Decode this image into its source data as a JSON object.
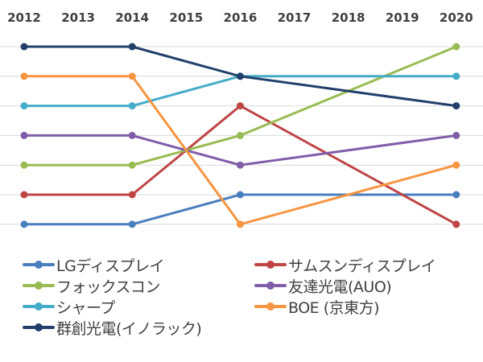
{
  "chart_data": {
    "type": "line",
    "subtype": "bump-ranking",
    "title": "",
    "xlabel": "",
    "ylabel": "",
    "x": [
      "2012",
      "2013",
      "2014",
      "2015",
      "2016",
      "2017",
      "2018",
      "2019",
      "2020"
    ],
    "x_axis_position": "top",
    "y_axis": {
      "meaning": "rank",
      "range": [
        1,
        7
      ],
      "inverted": true,
      "tick_labels_visible": false
    },
    "grid": true,
    "legend_position": "bottom",
    "series": [
      {
        "name": "LGディスプレイ",
        "color": "#4a7fbf",
        "points": [
          {
            "x": "2012",
            "rank": 7
          },
          {
            "x": "2014",
            "rank": 7
          },
          {
            "x": "2016",
            "rank": 6
          },
          {
            "x": "2020",
            "rank": 6
          }
        ]
      },
      {
        "name": "サムスンディスプレイ",
        "color": "#bf4545",
        "points": [
          {
            "x": "2012",
            "rank": 6
          },
          {
            "x": "2014",
            "rank": 6
          },
          {
            "x": "2016",
            "rank": 3
          },
          {
            "x": "2020",
            "rank": 7
          }
        ]
      },
      {
        "name": "フォックスコン",
        "color": "#98bc52",
        "points": [
          {
            "x": "2012",
            "rank": 5
          },
          {
            "x": "2014",
            "rank": 5
          },
          {
            "x": "2016",
            "rank": 4
          },
          {
            "x": "2020",
            "rank": 1
          }
        ]
      },
      {
        "name": "友達光電(AUO)",
        "color": "#7f5da8",
        "points": [
          {
            "x": "2012",
            "rank": 4
          },
          {
            "x": "2014",
            "rank": 4
          },
          {
            "x": "2016",
            "rank": 5
          },
          {
            "x": "2020",
            "rank": 4
          }
        ]
      },
      {
        "name": "シャープ",
        "color": "#44acc8",
        "points": [
          {
            "x": "2012",
            "rank": 3
          },
          {
            "x": "2014",
            "rank": 3
          },
          {
            "x": "2016",
            "rank": 2
          },
          {
            "x": "2020",
            "rank": 2
          }
        ]
      },
      {
        "name": "BOE (京東方)",
        "color": "#f79540",
        "points": [
          {
            "x": "2012",
            "rank": 2
          },
          {
            "x": "2014",
            "rank": 2
          },
          {
            "x": "2016",
            "rank": 7
          },
          {
            "x": "2020",
            "rank": 5
          }
        ]
      },
      {
        "name": "群創光電(イノラック)",
        "color": "#223f6b",
        "points": [
          {
            "x": "2012",
            "rank": 1
          },
          {
            "x": "2014",
            "rank": 1
          },
          {
            "x": "2016",
            "rank": 2
          },
          {
            "x": "2020",
            "rank": 3
          }
        ]
      }
    ]
  },
  "legend": {
    "items": [
      {
        "label": "LGディスプレイ",
        "color": "#4a7fbf"
      },
      {
        "label": "サムスンディスプレイ",
        "color": "#bf4545"
      },
      {
        "label": "フォックスコン",
        "color": "#98bc52"
      },
      {
        "label": "友達光電(AUO)",
        "color": "#7f5da8"
      },
      {
        "label": "シャープ",
        "color": "#44acc8"
      },
      {
        "label": "BOE (京東方)",
        "color": "#f79540"
      },
      {
        "label": "群創光電(イノラック)",
        "color": "#223f6b"
      }
    ]
  }
}
